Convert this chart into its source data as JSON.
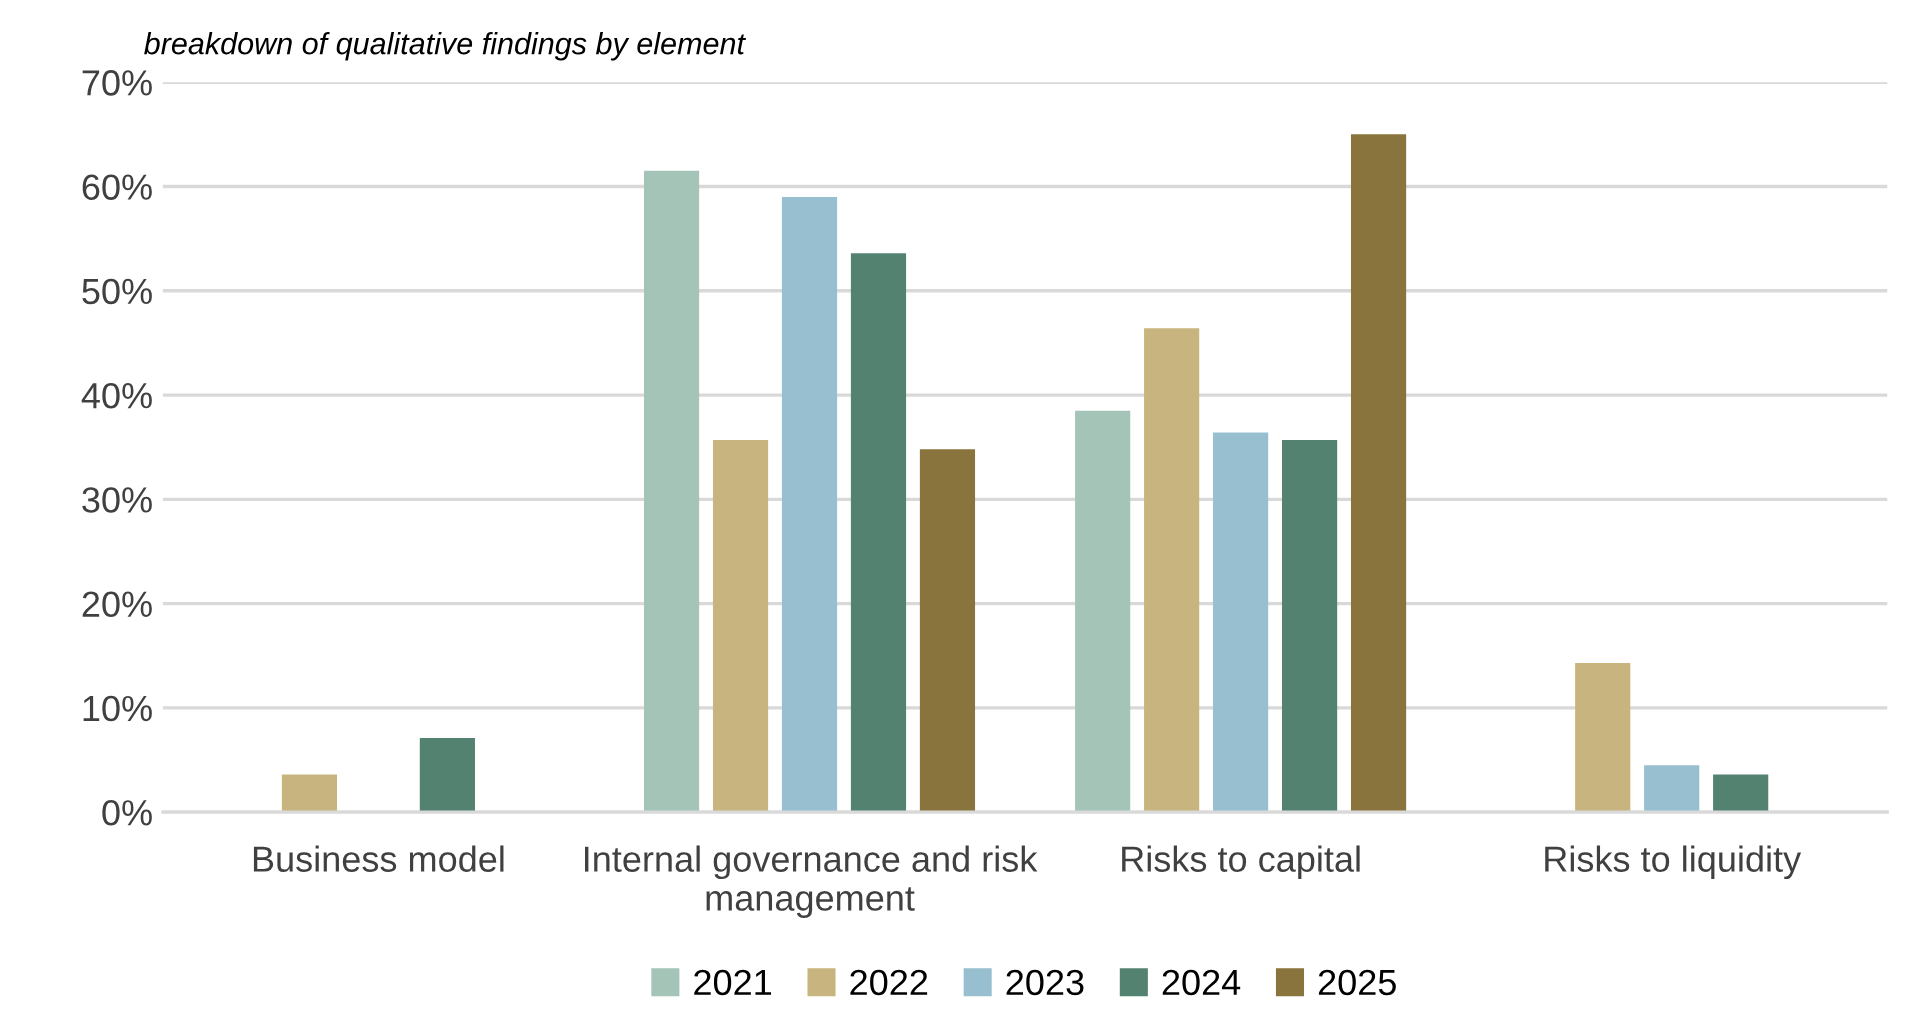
{
  "chart_data": {
    "type": "bar",
    "title": "breakdown of qualitative findings by element",
    "categories": [
      "Business model",
      "Internal governance and risk management",
      "Risks to capital",
      "Risks to liquidity"
    ],
    "series": [
      {
        "name": "2021",
        "color": "#a5c4b8",
        "values": [
          null,
          61.5,
          38.5,
          null
        ]
      },
      {
        "name": "2022",
        "color": "#c8b47e",
        "values": [
          3.6,
          35.7,
          46.4,
          14.3
        ]
      },
      {
        "name": "2023",
        "color": "#98bfcf",
        "values": [
          null,
          59.0,
          36.4,
          4.5
        ]
      },
      {
        "name": "2024",
        "color": "#548270",
        "values": [
          7.1,
          53.6,
          35.7,
          3.6
        ]
      },
      {
        "name": "2025",
        "color": "#8a743e",
        "values": [
          null,
          34.8,
          65.0,
          null
        ]
      }
    ],
    "ylim": [
      0,
      70
    ],
    "yticks": [
      {
        "value": 0,
        "label": "0%"
      },
      {
        "value": 10,
        "label": "10%"
      },
      {
        "value": 20,
        "label": "20%"
      },
      {
        "value": 30,
        "label": "30%"
      },
      {
        "value": 40,
        "label": "40%"
      },
      {
        "value": 50,
        "label": "50%"
      },
      {
        "value": 60,
        "label": "60%"
      },
      {
        "value": 70,
        "label": "70%"
      }
    ],
    "grid": "y",
    "legend": "bottom"
  }
}
